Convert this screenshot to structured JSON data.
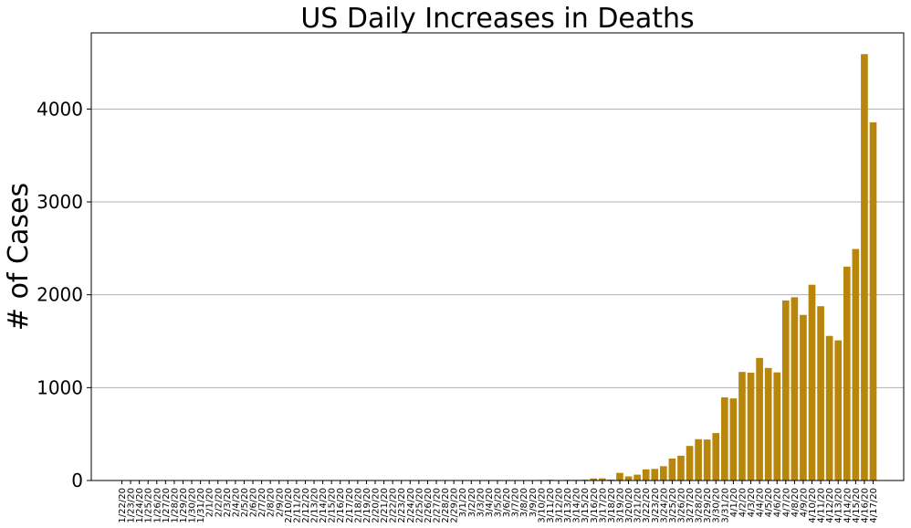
{
  "chart_data": {
    "type": "bar",
    "title": "US Daily Increases in Deaths",
    "y_label": "# of Cases",
    "categories": [
      "1/22/20",
      "1/23/20",
      "1/24/20",
      "1/25/20",
      "1/26/20",
      "1/27/20",
      "1/28/20",
      "1/29/20",
      "1/30/20",
      "1/31/20",
      "2/1/20",
      "2/2/20",
      "2/3/20",
      "2/4/20",
      "2/5/20",
      "2/6/20",
      "2/7/20",
      "2/8/20",
      "2/9/20",
      "2/10/20",
      "2/11/20",
      "2/12/20",
      "2/13/20",
      "2/14/20",
      "2/15/20",
      "2/16/20",
      "2/17/20",
      "2/18/20",
      "2/19/20",
      "2/20/20",
      "2/21/20",
      "2/22/20",
      "2/23/20",
      "2/24/20",
      "2/25/20",
      "2/26/20",
      "2/27/20",
      "2/28/20",
      "2/29/20",
      "3/1/20",
      "3/2/20",
      "3/3/20",
      "3/4/20",
      "3/5/20",
      "3/6/20",
      "3/7/20",
      "3/8/20",
      "3/9/20",
      "3/10/20",
      "3/11/20",
      "3/12/20",
      "3/13/20",
      "3/14/20",
      "3/15/20",
      "3/16/20",
      "3/17/20",
      "3/18/20",
      "3/19/20",
      "3/20/20",
      "3/21/20",
      "3/22/20",
      "3/23/20",
      "3/24/20",
      "3/25/20",
      "3/26/20",
      "3/27/20",
      "3/28/20",
      "3/29/20",
      "3/30/20",
      "3/31/20",
      "4/1/20",
      "4/2/20",
      "4/3/20",
      "4/4/20",
      "4/5/20",
      "4/6/20",
      "4/7/20",
      "4/8/20",
      "4/9/20",
      "4/10/20",
      "4/11/20",
      "4/12/20",
      "4/13/20",
      "4/14/20",
      "4/15/20",
      "4/16/20",
      "4/17/20"
    ],
    "values": [
      0,
      0,
      0,
      0,
      0,
      0,
      0,
      0,
      0,
      0,
      0,
      0,
      0,
      0,
      0,
      0,
      0,
      0,
      0,
      0,
      0,
      0,
      0,
      0,
      0,
      0,
      0,
      0,
      0,
      0,
      0,
      0,
      0,
      0,
      0,
      0,
      0,
      0,
      1,
      0,
      5,
      1,
      4,
      1,
      2,
      3,
      4,
      1,
      6,
      8,
      4,
      7,
      7,
      9,
      22,
      23,
      10,
      82,
      44,
      63,
      120,
      125,
      154,
      236,
      267,
      372,
      445,
      441,
      511,
      895,
      884,
      1169,
      1161,
      1320,
      1212,
      1164,
      1939,
      1973,
      1783,
      2108,
      1877,
      1557,
      1509,
      2303,
      2493,
      4591,
      3857
    ],
    "color": "#b8860b",
    "ylim": [
      0,
      4820
    ],
    "yticks": [
      0,
      1000,
      2000,
      3000,
      4000
    ],
    "grid": true
  }
}
